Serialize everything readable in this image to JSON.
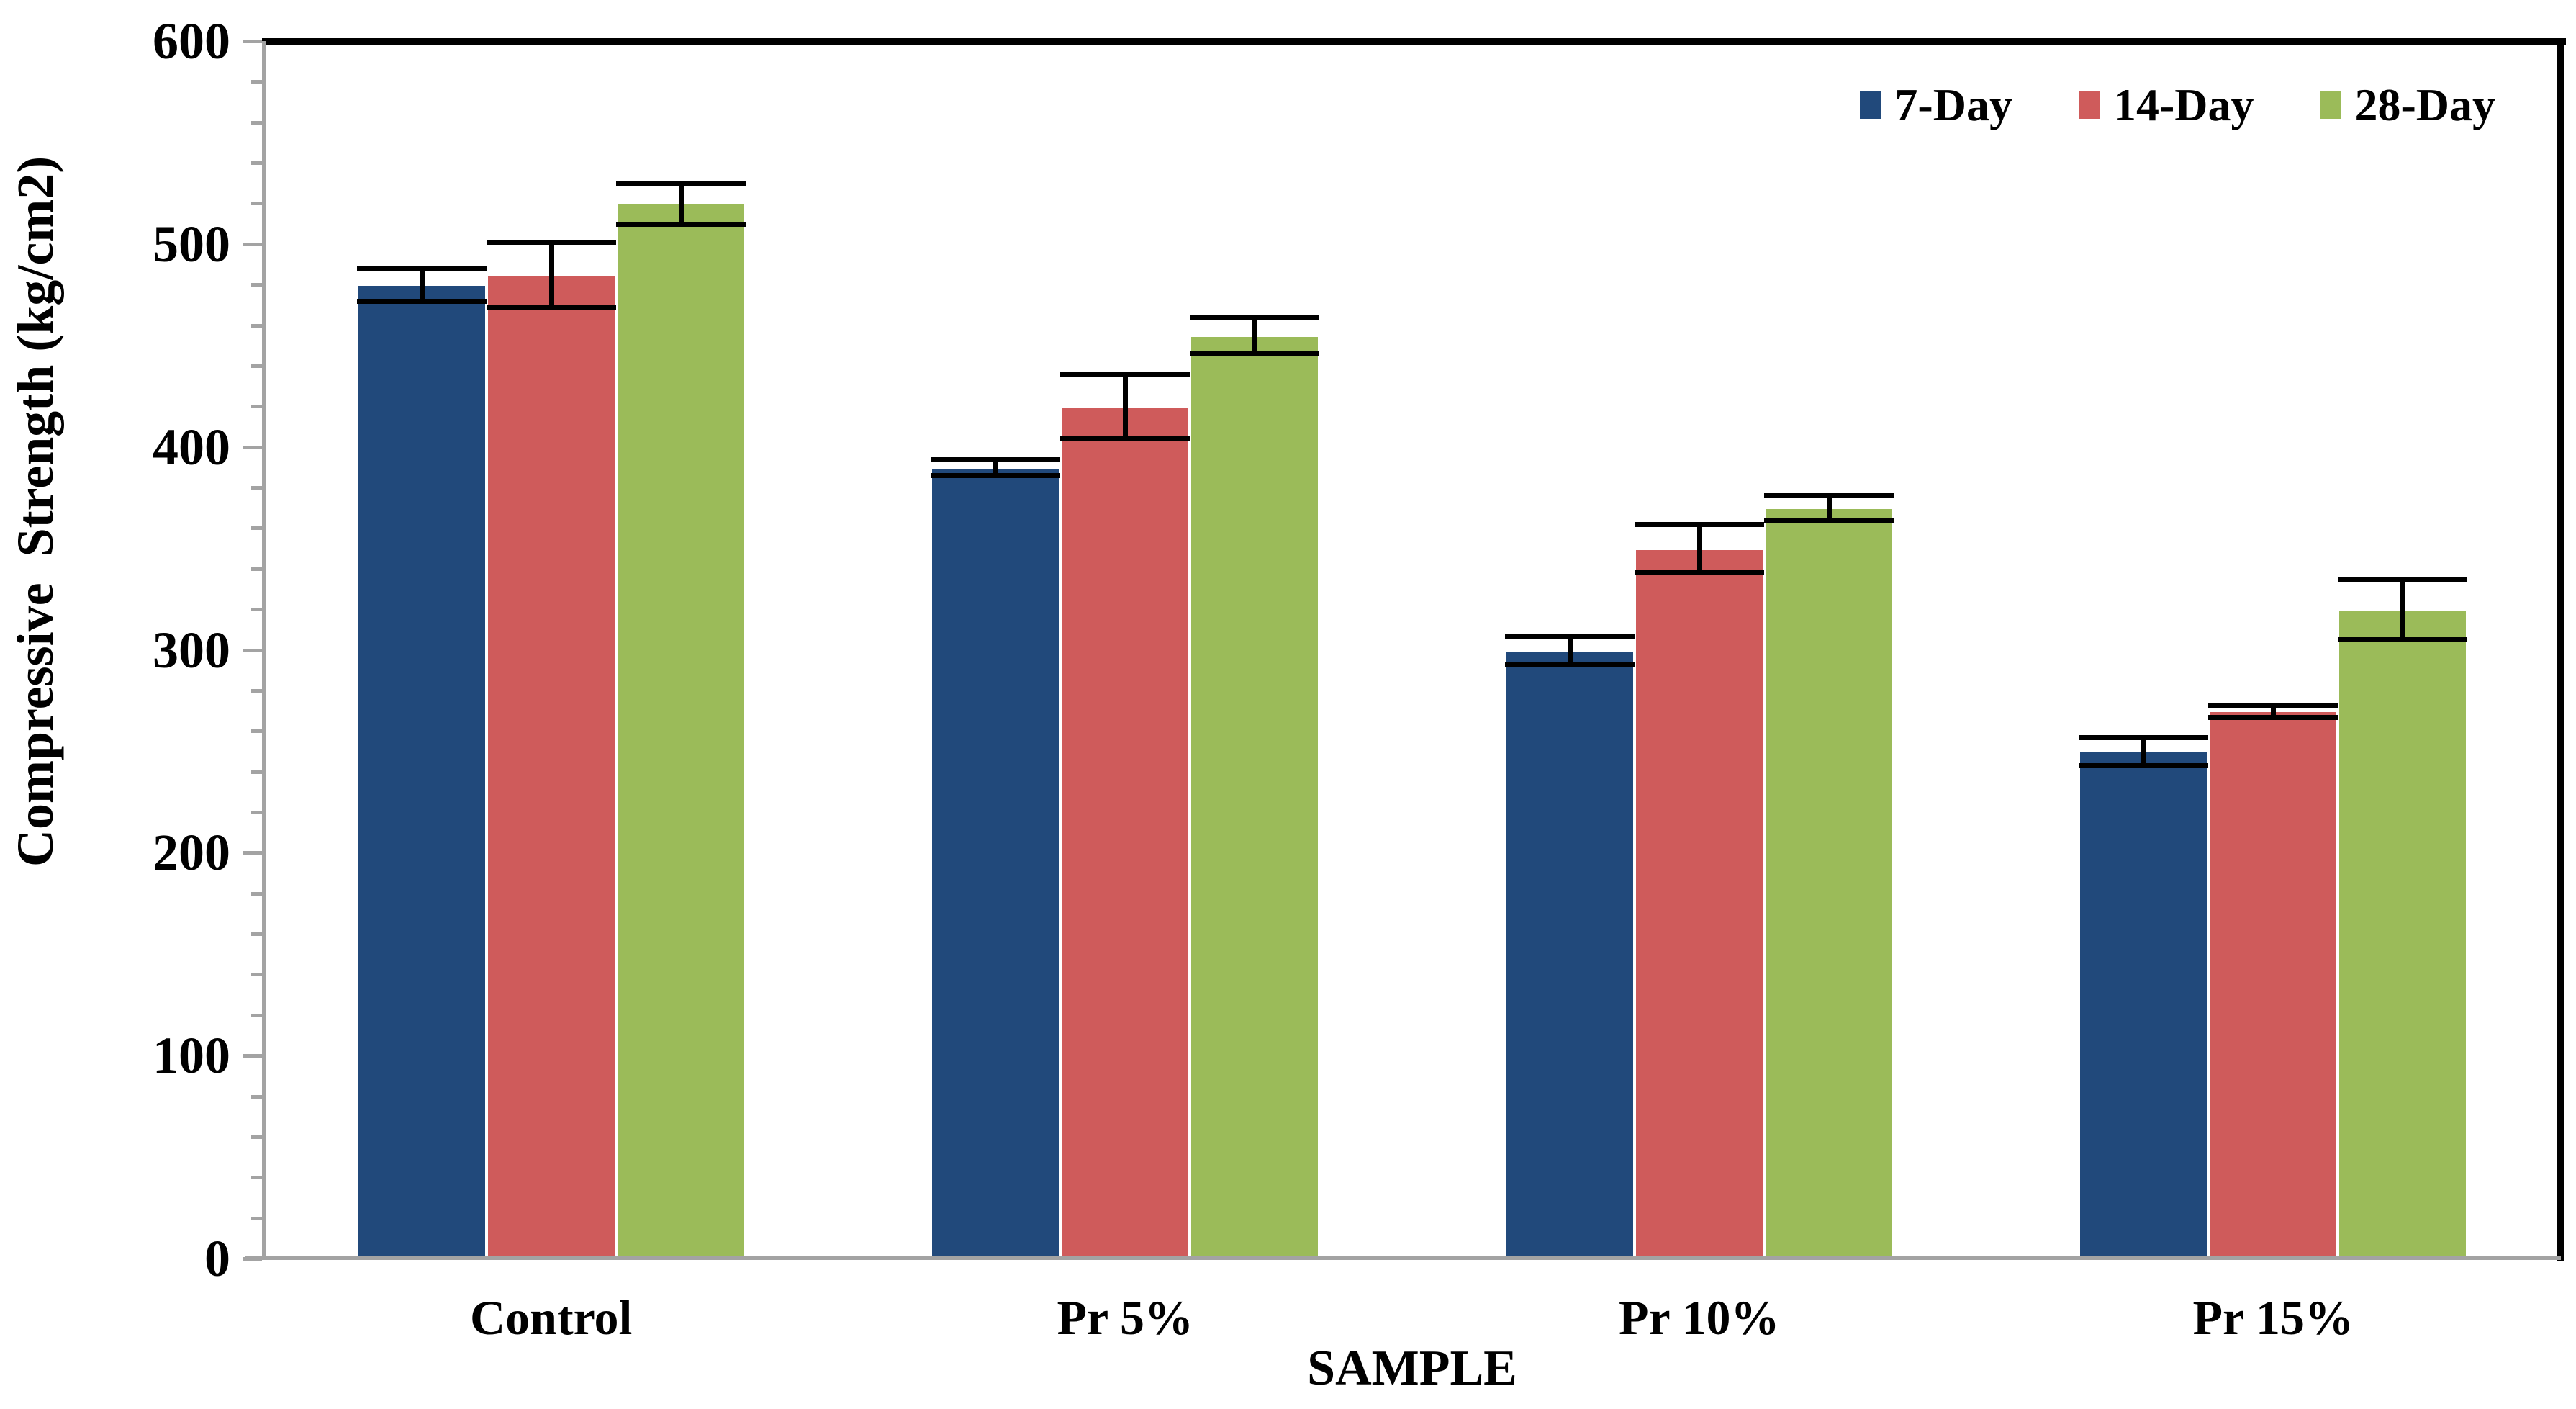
{
  "chart_data": {
    "type": "bar",
    "title": "",
    "categories": [
      "Control",
      "Pr 5%",
      "Pr 10%",
      "Pr 15%"
    ],
    "series": [
      {
        "name": "7-Day",
        "color": "#21497B",
        "values": [
          480,
          390,
          300,
          250
        ],
        "errors": [
          8,
          4,
          7,
          7
        ]
      },
      {
        "name": "14-Day",
        "color": "#CF5B5B",
        "values": [
          485,
          420,
          350,
          270
        ],
        "errors": [
          16,
          16,
          12,
          3
        ]
      },
      {
        "name": "28-Day",
        "color": "#9BBB59",
        "values": [
          520,
          455,
          370,
          320
        ],
        "errors": [
          10,
          9,
          6,
          15
        ]
      }
    ],
    "xlabel": "SAMPLE",
    "ylabel": "Compressive  Strength (kg/cm2)",
    "ylim": [
      0,
      600
    ],
    "yticks": [
      0,
      100,
      200,
      300,
      400,
      500,
      600
    ],
    "ytick_step": 100,
    "yminor_step": 20,
    "grid": false,
    "error_bars": true,
    "legend_position": "top-right"
  },
  "style_colors": {
    "frame_line": "#000000",
    "axis_line": "#A3A3A3",
    "text": "#000000",
    "background": "#FFFFFF"
  }
}
